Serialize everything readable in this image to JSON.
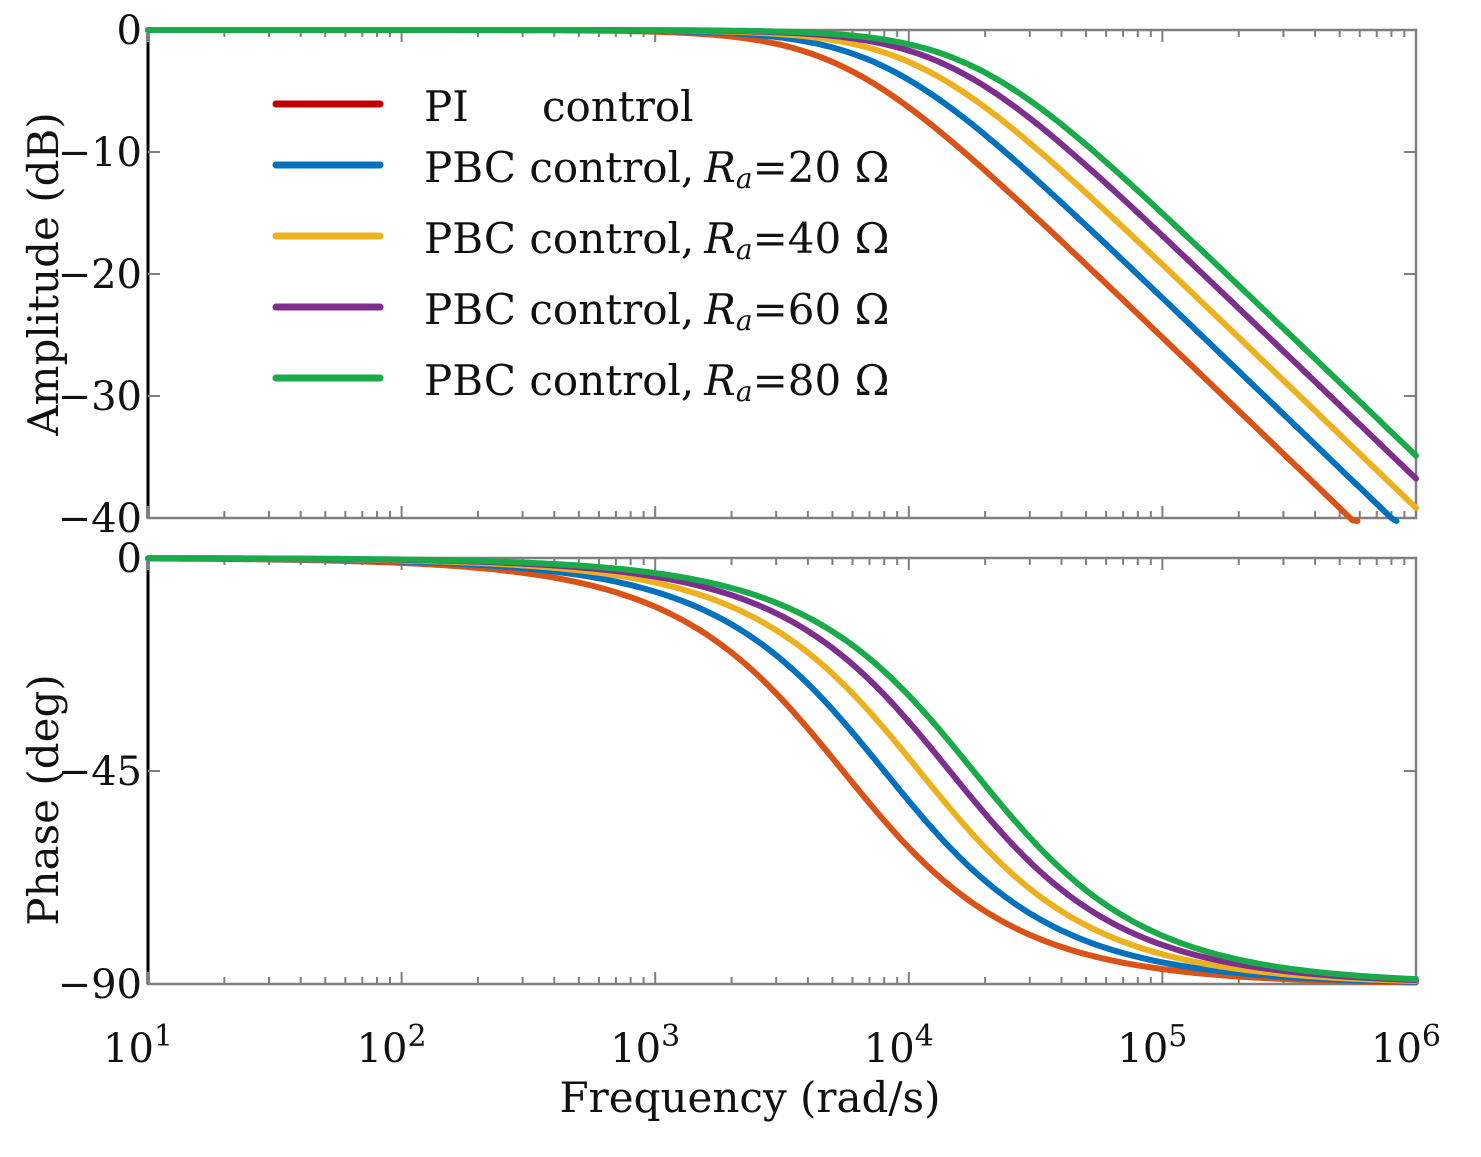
{
  "chart_data": [
    {
      "type": "line",
      "id": "amplitude",
      "ylabel": "Amplitude (dB)",
      "xlabel": "",
      "xscale": "log",
      "xlim": [
        10,
        1000000
      ],
      "ylim": [
        -40,
        0
      ],
      "yticks": [
        0,
        -10,
        -20,
        -30,
        -40
      ],
      "ytick_labels": [
        "0",
        "−10",
        "−20",
        "−30",
        "−40"
      ],
      "grid": false,
      "legend": {
        "placement": "top-left",
        "entries": [
          {
            "prefix": "PI",
            "middle": "control",
            "rsub": "",
            "value": "",
            "color": "#c00000"
          },
          {
            "prefix": "PBC control,",
            "middle": "",
            "r": "R",
            "rsub": "a",
            "value": "=20 Ω",
            "color": "#0072bd"
          },
          {
            "prefix": "PBC control,",
            "middle": "",
            "r": "R",
            "rsub": "a",
            "value": "=40 Ω",
            "color": "#edb120"
          },
          {
            "prefix": "PBC control,",
            "middle": "",
            "r": "R",
            "rsub": "a",
            "value": "=60 Ω",
            "color": "#7e2f8e"
          },
          {
            "prefix": "PBC control,",
            "middle": "",
            "r": "R",
            "rsub": "a",
            "value": "=80 Ω",
            "color": "#1aaa4a"
          }
        ]
      },
      "series": [
        {
          "key": "pi",
          "wc": 5500,
          "color": "#d95319"
        },
        {
          "key": "r20",
          "wc": 8000,
          "color": "#0072bd"
        },
        {
          "key": "r40",
          "wc": 11000,
          "color": "#edb120"
        },
        {
          "key": "r60",
          "wc": 14500,
          "color": "#7e2f8e"
        },
        {
          "key": "r80",
          "wc": 18000,
          "color": "#1aaa4a"
        }
      ]
    },
    {
      "type": "line",
      "id": "phase",
      "ylabel": "Phase (deg)",
      "xlabel": "Frequency (rad/s)",
      "xscale": "log",
      "xlim": [
        10,
        1000000
      ],
      "ylim": [
        -90,
        0
      ],
      "yticks": [
        0,
        -45,
        -90
      ],
      "ytick_labels": [
        "0",
        "−45",
        "−90"
      ],
      "xtick_bases": [
        "10",
        "10",
        "10",
        "10",
        "10",
        "10"
      ],
      "xtick_exps": [
        "1",
        "2",
        "3",
        "4",
        "5",
        "6"
      ],
      "grid": false,
      "series": [
        {
          "key": "pi",
          "wc": 5500,
          "color": "#d95319"
        },
        {
          "key": "r20",
          "wc": 8000,
          "color": "#0072bd"
        },
        {
          "key": "r40",
          "wc": 11000,
          "color": "#edb120"
        },
        {
          "key": "r60",
          "wc": 14500,
          "color": "#7e2f8e"
        },
        {
          "key": "r80",
          "wc": 18000,
          "color": "#1aaa4a"
        }
      ]
    }
  ]
}
